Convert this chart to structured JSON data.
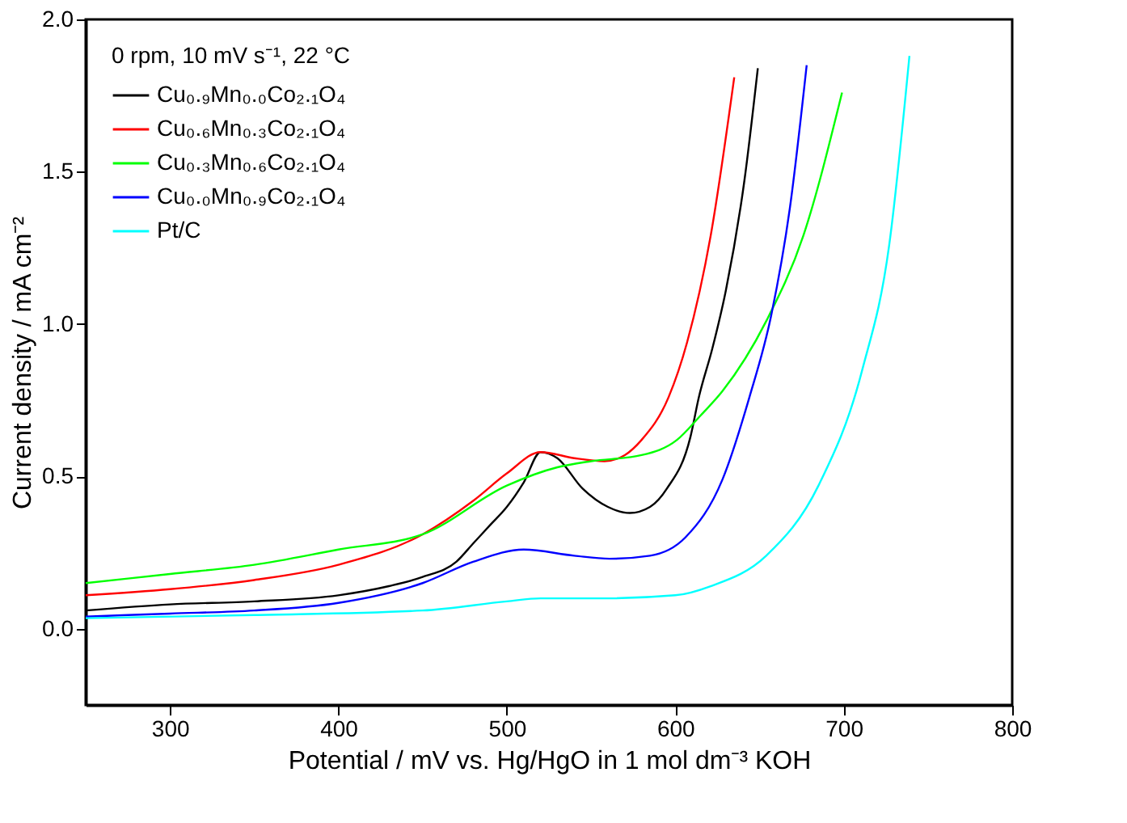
{
  "chart_data": {
    "type": "line",
    "xlabel": "Potential / mV vs. Hg/HgO in 1 mol dm⁻³ KOH",
    "ylabel": "Current density / mA cm⁻²",
    "legend_title": "0 rpm, 10 mV s⁻¹, 22 °C",
    "xlim": [
      250,
      800
    ],
    "xticks": [
      300,
      400,
      500,
      600,
      700,
      800
    ],
    "ylim": [
      -0.25,
      2.0
    ],
    "yticks": [
      {
        "value": 0,
        "label": "0.0"
      },
      0.5,
      {
        "value": 1,
        "label": "1.0"
      },
      1.5,
      {
        "value": 2,
        "label": "2.0"
      }
    ],
    "grid": false,
    "legend": "top left",
    "line_style": "solid",
    "series": [
      {
        "name": "Cu₀.₉Mn₀.₀Co₂.₁O₄",
        "color": "#000000",
        "x": [
          250,
          300,
          350,
          400,
          430,
          450,
          470,
          480,
          490,
          500,
          510,
          520,
          530,
          545,
          560,
          573,
          585,
          595,
          609,
          614,
          622,
          630,
          641,
          649
        ],
        "values": [
          0.06,
          0.08,
          0.09,
          0.11,
          0.14,
          0.17,
          0.22,
          0.28,
          0.34,
          0.4,
          0.48,
          0.58,
          0.56,
          0.46,
          0.4,
          0.38,
          0.4,
          0.46,
          0.63,
          0.76,
          0.92,
          1.11,
          1.47,
          1.84
        ]
      },
      {
        "name": "Cu₀.₆Mn₀.₃Co₂.₁O₄",
        "color": "#ff0000",
        "x": [
          250,
          300,
          350,
          400,
          450,
          480,
          500,
          520,
          540,
          558,
          570,
          580,
          596,
          607,
          621,
          635
        ],
        "values": [
          0.11,
          0.13,
          0.16,
          0.21,
          0.31,
          0.42,
          0.51,
          0.58,
          0.56,
          0.55,
          0.57,
          0.62,
          0.76,
          0.94,
          1.29,
          1.81
        ]
      },
      {
        "name": "Cu₀.₃Mn₀.₆Co₂.₁O₄",
        "color": "#00ff00",
        "x": [
          250,
          300,
          350,
          400,
          450,
          500,
          530,
          550,
          580,
          601,
          615,
          628,
          654,
          676,
          699
        ],
        "values": [
          0.15,
          0.18,
          0.21,
          0.26,
          0.31,
          0.47,
          0.53,
          0.55,
          0.57,
          0.62,
          0.7,
          0.78,
          1.01,
          1.29,
          1.76
        ]
      },
      {
        "name": "Cu₀.₀Mn₀.₉Co₂.₁O₄",
        "color": "#0000ff",
        "x": [
          250,
          300,
          350,
          400,
          450,
          480,
          510,
          540,
          561,
          585,
          606,
          628,
          644,
          657,
          668,
          678
        ],
        "values": [
          0.04,
          0.05,
          0.06,
          0.085,
          0.15,
          0.22,
          0.26,
          0.24,
          0.23,
          0.24,
          0.3,
          0.49,
          0.76,
          1.03,
          1.38,
          1.85
        ]
      },
      {
        "name": "Pt/C",
        "color": "#00ffff",
        "x": [
          250,
          350,
          450,
          500,
          520,
          558,
          600,
          621,
          654,
          685,
          711,
          727,
          739
        ],
        "values": [
          0.035,
          0.045,
          0.06,
          0.09,
          0.1,
          0.1,
          0.11,
          0.14,
          0.24,
          0.47,
          0.85,
          1.26,
          1.88
        ]
      }
    ]
  }
}
